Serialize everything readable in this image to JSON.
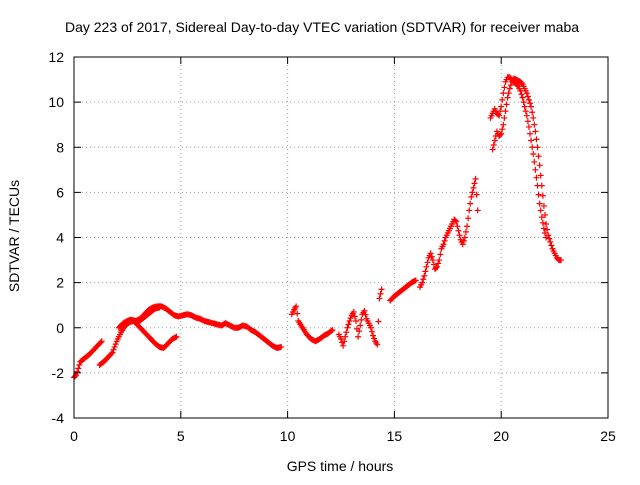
{
  "chart_data": {
    "type": "scatter",
    "title": "Day 223 of 2017, Sidereal Day-to-day VTEC variation (SDTVAR) for receiver maba",
    "xlabel": "GPS time / hours",
    "ylabel": "SDTVAR / TECUs",
    "xlim": [
      0,
      25
    ],
    "ylim": [
      -4,
      12
    ],
    "x_ticks": [
      0,
      5,
      10,
      15,
      20,
      25
    ],
    "y_ticks": [
      -4,
      -2,
      0,
      2,
      4,
      6,
      8,
      10,
      12
    ],
    "x_tick_labels": [
      "0",
      "5",
      "10",
      "15",
      "20",
      "25"
    ],
    "y_tick_labels": [
      "-4",
      "-2",
      "0",
      "2",
      "4",
      "6",
      "8",
      "10",
      "12"
    ],
    "grid": true,
    "grid_style": "dotted",
    "marker": "+",
    "color": "#ff0000",
    "series": [
      {
        "segments": [
          [
            [
              0.0,
              -2.2
            ],
            [
              0.1,
              -2.1
            ],
            [
              0.2,
              -1.8
            ],
            [
              0.3,
              -1.5
            ],
            [
              0.5,
              -1.35
            ],
            [
              0.7,
              -1.2
            ],
            [
              0.9,
              -1.0
            ],
            [
              1.1,
              -0.8
            ],
            [
              1.3,
              -0.6
            ]
          ],
          [
            [
              1.2,
              -1.65
            ],
            [
              1.4,
              -1.5
            ],
            [
              1.6,
              -1.3
            ],
            [
              1.8,
              -1.1
            ],
            [
              2.0,
              -0.6
            ],
            [
              2.2,
              -0.2
            ],
            [
              2.4,
              0.1
            ],
            [
              2.6,
              0.25
            ],
            [
              2.8,
              0.3
            ],
            [
              3.0,
              0.1
            ],
            [
              3.2,
              -0.1
            ],
            [
              3.4,
              -0.3
            ],
            [
              3.6,
              -0.5
            ],
            [
              3.8,
              -0.7
            ],
            [
              4.0,
              -0.85
            ],
            [
              4.2,
              -0.9
            ],
            [
              4.4,
              -0.7
            ],
            [
              4.6,
              -0.5
            ],
            [
              4.8,
              -0.4
            ]
          ],
          [
            [
              2.1,
              0.0
            ],
            [
              2.3,
              0.2
            ],
            [
              2.5,
              0.3
            ],
            [
              2.7,
              0.35
            ],
            [
              2.9,
              0.3
            ],
            [
              3.1,
              0.4
            ],
            [
              3.3,
              0.6
            ],
            [
              3.5,
              0.8
            ],
            [
              3.7,
              0.9
            ],
            [
              3.9,
              0.95
            ],
            [
              4.1,
              0.95
            ],
            [
              4.3,
              0.85
            ],
            [
              4.5,
              0.7
            ],
            [
              4.7,
              0.55
            ],
            [
              4.9,
              0.5
            ],
            [
              5.1,
              0.55
            ],
            [
              5.3,
              0.6
            ],
            [
              5.5,
              0.55
            ],
            [
              5.7,
              0.45
            ],
            [
              5.9,
              0.4
            ],
            [
              6.1,
              0.3
            ],
            [
              6.3,
              0.25
            ],
            [
              6.5,
              0.2
            ],
            [
              6.7,
              0.15
            ],
            [
              6.9,
              0.1
            ],
            [
              7.1,
              0.2
            ],
            [
              7.3,
              0.1
            ],
            [
              7.5,
              0.0
            ],
            [
              7.7,
              0.0
            ],
            [
              7.9,
              0.1
            ],
            [
              8.1,
              0.05
            ],
            [
              8.3,
              -0.1
            ],
            [
              8.5,
              -0.2
            ],
            [
              8.7,
              -0.35
            ],
            [
              8.9,
              -0.5
            ],
            [
              9.1,
              -0.65
            ],
            [
              9.3,
              -0.8
            ],
            [
              9.5,
              -0.9
            ],
            [
              9.7,
              -0.85
            ]
          ],
          [
            [
              2.6,
              0.35
            ],
            [
              2.8,
              0.3
            ],
            [
              3.0,
              0.25
            ],
            [
              3.2,
              0.4
            ],
            [
              3.4,
              0.55
            ],
            [
              3.6,
              0.7
            ],
            [
              3.8,
              0.85
            ],
            [
              4.0,
              0.9
            ]
          ],
          [
            [
              10.2,
              0.6
            ],
            [
              10.3,
              0.8
            ],
            [
              10.4,
              0.95
            ],
            [
              10.5,
              0.3
            ],
            [
              10.7,
              0.0
            ],
            [
              10.9,
              -0.3
            ],
            [
              11.1,
              -0.5
            ],
            [
              11.3,
              -0.6
            ],
            [
              11.5,
              -0.5
            ],
            [
              11.7,
              -0.35
            ],
            [
              11.9,
              -0.25
            ],
            [
              12.1,
              -0.1
            ]
          ],
          [
            [
              12.4,
              -0.3
            ],
            [
              12.5,
              -0.5
            ],
            [
              12.6,
              -0.8
            ],
            [
              12.7,
              -0.4
            ],
            [
              12.8,
              0.0
            ],
            [
              12.9,
              0.3
            ],
            [
              13.0,
              0.55
            ],
            [
              13.1,
              0.7
            ],
            [
              13.2,
              0.3
            ],
            [
              13.3,
              -0.4
            ],
            [
              13.4,
              0.1
            ],
            [
              13.5,
              0.6
            ],
            [
              13.6,
              0.75
            ],
            [
              13.7,
              0.4
            ],
            [
              13.8,
              0.2
            ],
            [
              13.9,
              0.0
            ],
            [
              14.0,
              -0.35
            ],
            [
              14.1,
              -0.6
            ],
            [
              14.2,
              -0.75
            ],
            [
              14.3,
              1.3
            ],
            [
              14.4,
              1.7
            ]
          ],
          [
            [
              14.8,
              1.2
            ],
            [
              15.0,
              1.4
            ],
            [
              15.2,
              1.55
            ],
            [
              15.4,
              1.7
            ],
            [
              15.6,
              1.85
            ],
            [
              15.8,
              2.0
            ],
            [
              16.0,
              2.1
            ]
          ],
          [
            [
              16.2,
              1.8
            ],
            [
              16.3,
              2.0
            ],
            [
              16.4,
              2.3
            ],
            [
              16.5,
              2.7
            ],
            [
              16.6,
              3.1
            ],
            [
              16.7,
              3.3
            ],
            [
              16.8,
              3.0
            ],
            [
              16.9,
              2.6
            ],
            [
              17.0,
              2.7
            ],
            [
              17.1,
              3.0
            ],
            [
              17.2,
              3.5
            ],
            [
              17.3,
              3.7
            ],
            [
              17.4,
              4.0
            ],
            [
              17.5,
              4.2
            ],
            [
              17.6,
              4.4
            ],
            [
              17.7,
              4.6
            ],
            [
              17.8,
              4.8
            ],
            [
              17.9,
              4.7
            ],
            [
              18.0,
              4.3
            ],
            [
              18.1,
              3.9
            ],
            [
              18.2,
              3.7
            ],
            [
              18.3,
              4.0
            ],
            [
              18.4,
              4.5
            ],
            [
              18.5,
              5.2
            ],
            [
              18.6,
              5.8
            ],
            [
              18.7,
              6.2
            ],
            [
              18.8,
              6.6
            ],
            [
              18.9,
              5.2
            ]
          ],
          [
            [
              19.6,
              7.9
            ],
            [
              19.7,
              8.3
            ],
            [
              19.8,
              8.7
            ],
            [
              19.9,
              8.5
            ],
            [
              20.0,
              8.6
            ],
            [
              20.1,
              9.0
            ],
            [
              20.2,
              9.6
            ],
            [
              20.3,
              10.2
            ],
            [
              20.4,
              10.6
            ],
            [
              20.5,
              10.9
            ],
            [
              20.6,
              11.05
            ],
            [
              20.7,
              11.0
            ],
            [
              20.8,
              10.95
            ],
            [
              20.9,
              10.9
            ],
            [
              21.0,
              10.8
            ],
            [
              21.1,
              10.6
            ],
            [
              21.2,
              10.4
            ],
            [
              21.3,
              10.1
            ],
            [
              21.4,
              9.8
            ],
            [
              21.5,
              9.3
            ],
            [
              21.6,
              8.7
            ],
            [
              21.7,
              8.0
            ],
            [
              21.8,
              7.2
            ],
            [
              21.9,
              6.3
            ],
            [
              22.0,
              5.4
            ],
            [
              22.1,
              4.6
            ],
            [
              22.2,
              4.1
            ],
            [
              22.3,
              3.8
            ],
            [
              22.4,
              3.5
            ],
            [
              22.5,
              3.3
            ],
            [
              22.6,
              3.1
            ],
            [
              22.7,
              3.0
            ],
            [
              22.8,
              3.0
            ]
          ],
          [
            [
              19.5,
              9.3
            ],
            [
              19.6,
              9.5
            ],
            [
              19.7,
              9.7
            ],
            [
              19.8,
              9.5
            ],
            [
              19.9,
              9.4
            ],
            [
              20.0,
              9.8
            ],
            [
              20.1,
              10.4
            ],
            [
              20.2,
              10.9
            ],
            [
              20.3,
              11.1
            ],
            [
              20.4,
              11.1
            ],
            [
              20.5,
              11.0
            ],
            [
              20.6,
              10.9
            ],
            [
              20.7,
              10.8
            ],
            [
              20.8,
              10.7
            ],
            [
              20.9,
              10.5
            ],
            [
              21.0,
              10.2
            ],
            [
              21.1,
              9.8
            ],
            [
              21.2,
              9.4
            ],
            [
              21.3,
              8.9
            ],
            [
              21.4,
              8.3
            ],
            [
              21.5,
              7.7
            ],
            [
              21.6,
              7.0
            ],
            [
              21.7,
              6.3
            ],
            [
              21.8,
              5.5
            ],
            [
              21.9,
              4.9
            ],
            [
              22.0,
              4.4
            ],
            [
              22.1,
              4.0
            ]
          ]
        ]
      }
    ]
  }
}
